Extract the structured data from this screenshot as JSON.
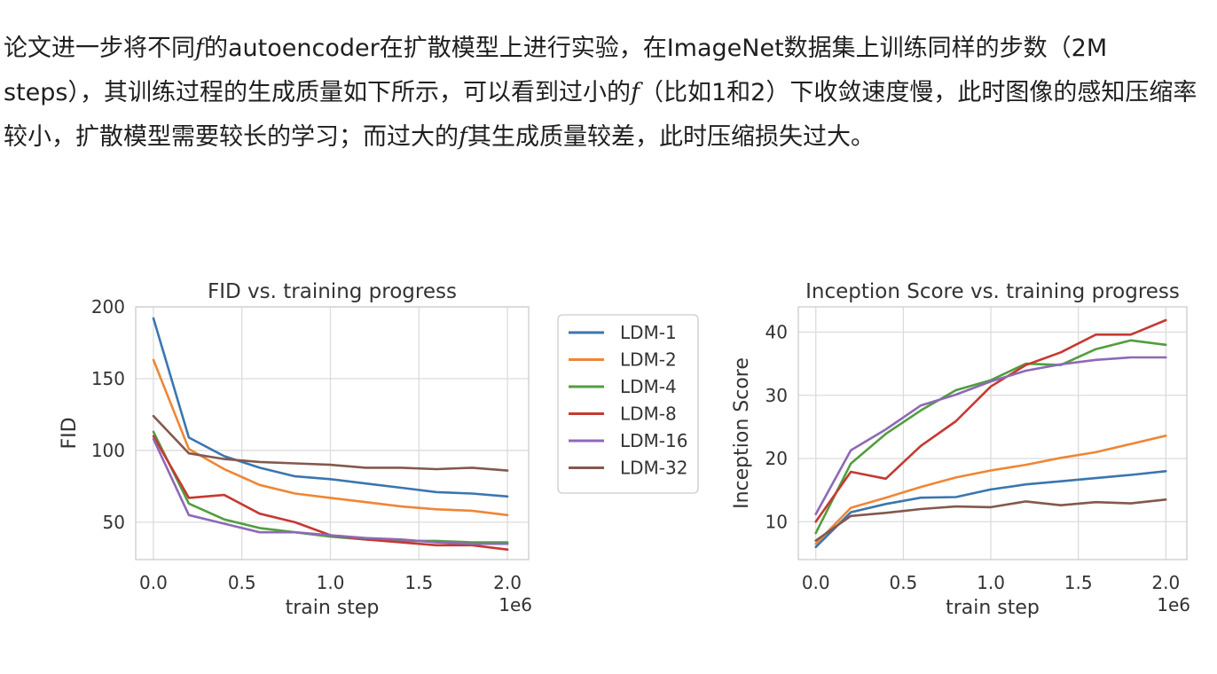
{
  "paragraph": {
    "s1": "论文进一步将不同",
    "f1": "f",
    "s2": "的autoencoder在扩散模型上进行实验，在ImageNet数据集上训练同样的步数（2M steps），其训练过程的生成质量如下所示，可以看到过小的",
    "f2": "f",
    "s3": "（比如1和2）下收敛速度慢，此时图像的感知压缩率较小，扩散模型需要较长的学习；而过大的",
    "f3": "f",
    "s4": "其生成质量较差，此时压缩损失过大。"
  },
  "chart_data": [
    {
      "type": "line",
      "title": "FID vs. training progress",
      "xlabel": "train step",
      "ylabel": "FID",
      "x_offset_label": "1e6",
      "xlim": [
        -0.1,
        2.12
      ],
      "ylim": [
        24,
        200
      ],
      "xticks": [
        0.0,
        0.5,
        1.0,
        1.5,
        2.0
      ],
      "xtick_labels": [
        "0.0",
        "0.5",
        "1.0",
        "1.5",
        "2.0"
      ],
      "yticks": [
        50,
        100,
        150,
        200
      ],
      "ytick_labels": [
        "50",
        "100",
        "150",
        "200"
      ],
      "grid": true,
      "x": [
        0.0,
        0.2,
        0.4,
        0.6,
        0.8,
        1.0,
        1.2,
        1.4,
        1.6,
        1.8,
        2.0
      ],
      "series": [
        {
          "name": "LDM-1",
          "color": "#3a76af",
          "values": [
            192,
            109,
            96,
            88,
            82,
            80,
            77,
            74,
            71,
            70,
            68
          ]
        },
        {
          "name": "LDM-2",
          "color": "#ef8636",
          "values": [
            163,
            101,
            87,
            76,
            70,
            67,
            64,
            61,
            59,
            58,
            55
          ]
        },
        {
          "name": "LDM-4",
          "color": "#519e3e",
          "values": [
            113,
            63,
            52,
            46,
            43,
            40,
            38,
            37,
            37,
            36,
            36
          ]
        },
        {
          "name": "LDM-8",
          "color": "#c53a32",
          "values": [
            110,
            67,
            69,
            56,
            50,
            41,
            38,
            36,
            34,
            34,
            31
          ]
        },
        {
          "name": "LDM-16",
          "color": "#8d69b8",
          "values": [
            108,
            55,
            49,
            43,
            43,
            41,
            39,
            38,
            36,
            35,
            35
          ]
        },
        {
          "name": "LDM-32",
          "color": "#84584e",
          "values": [
            124,
            98,
            94,
            92,
            91,
            90,
            88,
            88,
            87,
            88,
            86
          ]
        }
      ]
    },
    {
      "type": "line",
      "title": "Inception Score vs. training progress",
      "xlabel": "train step",
      "ylabel": "Inception Score",
      "x_offset_label": "1e6",
      "xlim": [
        -0.1,
        2.12
      ],
      "ylim": [
        4,
        44
      ],
      "xticks": [
        0.0,
        0.5,
        1.0,
        1.5,
        2.0
      ],
      "xtick_labels": [
        "0.0",
        "0.5",
        "1.0",
        "1.5",
        "2.0"
      ],
      "yticks": [
        10,
        20,
        30,
        40
      ],
      "ytick_labels": [
        "10",
        "20",
        "30",
        "40"
      ],
      "grid": true,
      "x": [
        0.0,
        0.2,
        0.4,
        0.6,
        0.8,
        1.0,
        1.2,
        1.4,
        1.6,
        1.8,
        2.0
      ],
      "series": [
        {
          "name": "LDM-1",
          "color": "#3a76af",
          "values": [
            6.0,
            11.5,
            12.8,
            13.8,
            13.9,
            15.1,
            15.9,
            16.4,
            16.9,
            17.4,
            18.0
          ]
        },
        {
          "name": "LDM-2",
          "color": "#ef8636",
          "values": [
            6.5,
            12.2,
            13.8,
            15.5,
            17.0,
            18.1,
            19.0,
            20.1,
            21.0,
            22.3,
            23.6
          ]
        },
        {
          "name": "LDM-4",
          "color": "#519e3e",
          "values": [
            8.2,
            19.2,
            23.9,
            27.6,
            30.8,
            32.4,
            35.0,
            34.8,
            37.3,
            38.7,
            38.0
          ]
        },
        {
          "name": "LDM-8",
          "color": "#c53a32",
          "values": [
            10.0,
            17.9,
            16.8,
            22.0,
            25.9,
            31.4,
            34.8,
            36.8,
            39.6,
            39.6,
            41.9
          ]
        },
        {
          "name": "LDM-16",
          "color": "#8d69b8",
          "values": [
            11.2,
            21.3,
            24.6,
            28.4,
            30.1,
            32.2,
            33.9,
            34.9,
            35.6,
            36.0,
            36.0
          ]
        },
        {
          "name": "LDM-32",
          "color": "#84584e",
          "values": [
            7.0,
            10.9,
            11.4,
            12.0,
            12.4,
            12.3,
            13.2,
            12.6,
            13.1,
            12.9,
            13.5
          ]
        }
      ]
    }
  ]
}
